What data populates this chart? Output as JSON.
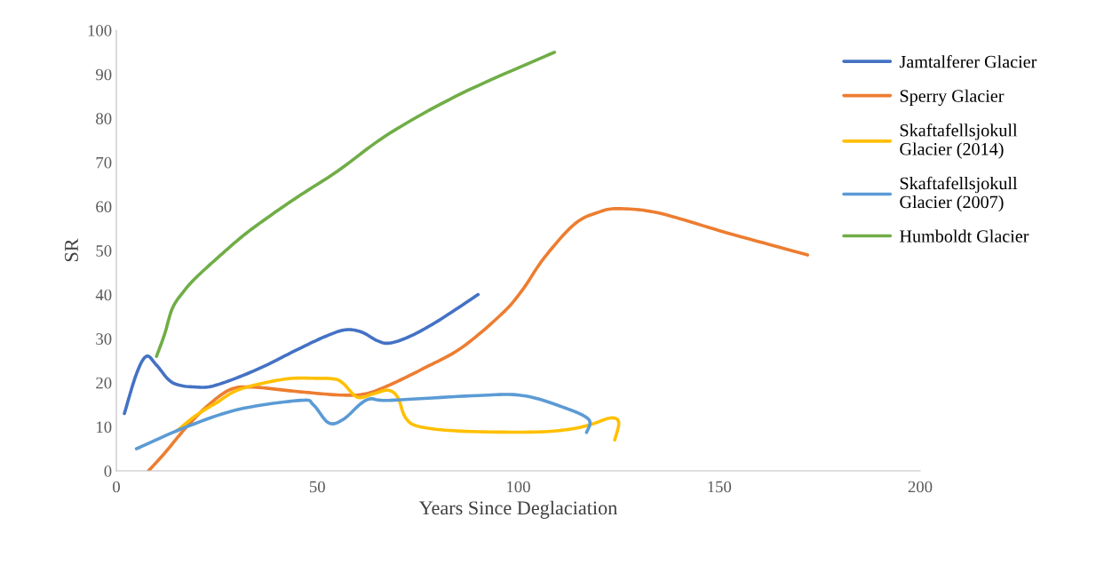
{
  "chart_data": {
    "type": "line",
    "xlabel": "Years Since Deglaciation",
    "ylabel": "SR",
    "xlim": [
      0,
      200
    ],
    "xticks": [
      0,
      50,
      100,
      150,
      200
    ],
    "ylim": [
      0,
      100
    ],
    "yticks": [
      0,
      10,
      20,
      30,
      40,
      50,
      60,
      70,
      80,
      90,
      100
    ],
    "grid": false,
    "legend": "right",
    "marker": "none",
    "series": [
      {
        "name": "Jamtalferer Glacier",
        "color": "#4472c4",
        "x": [
          2,
          5,
          7.5,
          10,
          14,
          20,
          25,
          35,
          45,
          52,
          57,
          61,
          65,
          68,
          73,
          80,
          90
        ],
        "values": [
          13,
          22,
          26,
          24,
          20,
          19,
          19.5,
          23,
          27.5,
          30.5,
          32,
          31.5,
          29.5,
          29,
          30.5,
          34,
          40
        ]
      },
      {
        "name": "Sperry Glacier",
        "color": "#ed7d31",
        "x": [
          8,
          12,
          17.5,
          23,
          28.5,
          34,
          45,
          55.7,
          62,
          68,
          77,
          86,
          96,
          101,
          106.5,
          114,
          120,
          125,
          135,
          152,
          172
        ],
        "values": [
          0,
          4,
          10,
          15,
          18.5,
          19,
          18,
          17.2,
          17.5,
          19.5,
          23.5,
          28,
          35.7,
          41,
          48.4,
          56,
          58.7,
          59.5,
          58.5,
          54,
          49
        ]
      },
      {
        "name": "Skaftafellsjokull Glacier (2014)",
        "color": "#ffc000",
        "x": [
          15,
          19.7,
          25,
          30.7,
          41.8,
          50,
          54.4,
          56.5,
          60,
          64,
          67.6,
          70,
          72,
          75.6,
          86,
          103.6,
          112.5,
          118,
          123,
          125,
          124
        ],
        "values": [
          9,
          12.5,
          15.5,
          18.5,
          20.8,
          21,
          20.8,
          19.8,
          16.7,
          17.5,
          18.3,
          16.7,
          12,
          10,
          9,
          8.8,
          9.4,
          10.5,
          12,
          11,
          7
        ]
      },
      {
        "name": "Skaftafellsjokull Glacier (2007)",
        "color": "#5b9bd5",
        "x": [
          5,
          17.5,
          30.7,
          46,
          49,
          52.8,
          56.5,
          62.3,
          68,
          90,
          101,
          111,
          117.5,
          117
        ],
        "values": [
          5,
          10,
          14,
          16,
          15,
          10.9,
          11.7,
          16.1,
          16,
          17.1,
          17.1,
          14.5,
          11.7,
          8.7
        ]
      },
      {
        "name": "Humboldt Glacier",
        "color": "#70ad47",
        "x": [
          10,
          12,
          14,
          17,
          20,
          26,
          33,
          44,
          55,
          68,
          86,
          109
        ],
        "values": [
          26,
          31,
          37,
          41,
          44,
          49,
          54.4,
          61.5,
          68,
          76.6,
          85.7,
          95
        ]
      }
    ]
  }
}
